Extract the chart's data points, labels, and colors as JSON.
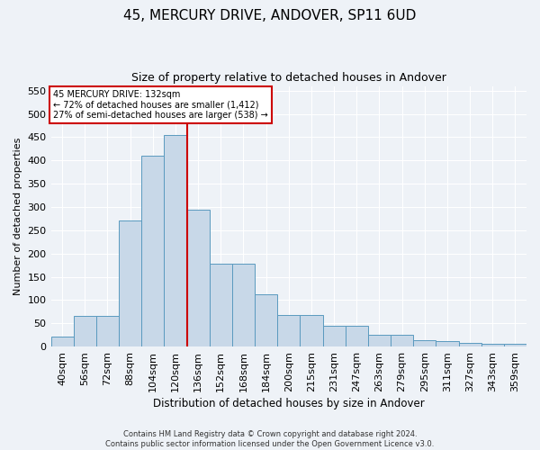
{
  "title1": "45, MERCURY DRIVE, ANDOVER, SP11 6UD",
  "title2": "Size of property relative to detached houses in Andover",
  "xlabel": "Distribution of detached houses by size in Andover",
  "ylabel": "Number of detached properties",
  "footer1": "Contains HM Land Registry data © Crown copyright and database right 2024.",
  "footer2": "Contains public sector information licensed under the Open Government Licence v3.0.",
  "bar_color": "#c8d8e8",
  "bar_edge_color": "#5a9abf",
  "categories": [
    "40sqm",
    "56sqm",
    "72sqm",
    "88sqm",
    "104sqm",
    "120sqm",
    "136sqm",
    "152sqm",
    "168sqm",
    "184sqm",
    "200sqm",
    "215sqm",
    "231sqm",
    "247sqm",
    "263sqm",
    "279sqm",
    "295sqm",
    "311sqm",
    "327sqm",
    "343sqm",
    "359sqm"
  ],
  "values": [
    22,
    65,
    65,
    270,
    410,
    455,
    295,
    178,
    178,
    113,
    68,
    68,
    45,
    45,
    25,
    25,
    13,
    12,
    8,
    6,
    5
  ],
  "red_line_x": 5.5,
  "annotation_title": "45 MERCURY DRIVE: 132sqm",
  "annotation_line1": "← 72% of detached houses are smaller (1,412)",
  "annotation_line2": "27% of semi-detached houses are larger (538) →",
  "ylim": [
    0,
    560
  ],
  "yticks": [
    0,
    50,
    100,
    150,
    200,
    250,
    300,
    350,
    400,
    450,
    500,
    550
  ],
  "bg_color": "#eef2f7",
  "grid_color": "#ffffff",
  "annotation_box_color": "#ffffff",
  "annotation_box_edge": "#cc0000",
  "red_line_color": "#cc0000",
  "title1_fontsize": 11,
  "title2_fontsize": 9
}
